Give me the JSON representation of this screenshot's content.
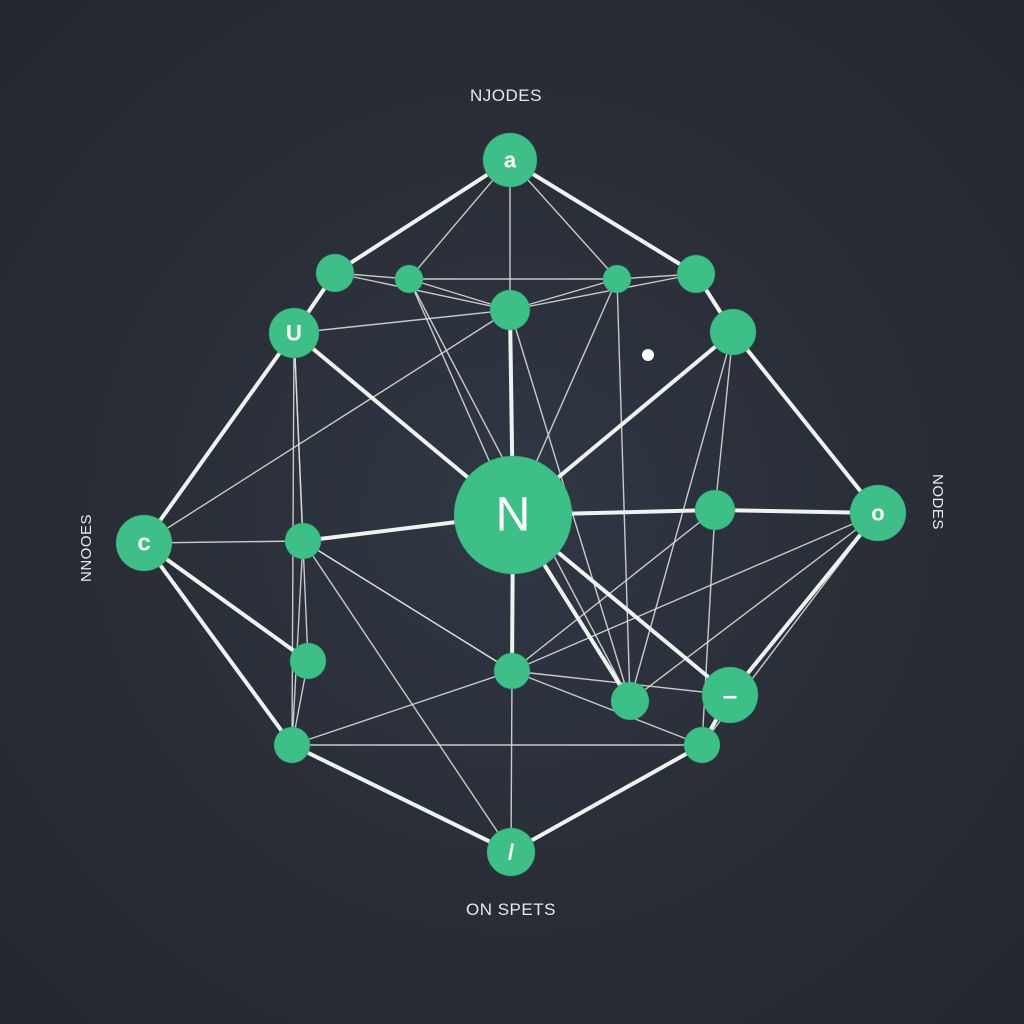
{
  "diagram": {
    "labels": {
      "top": "NJODES",
      "bottom": "ON SPETS",
      "left": "NNOOES",
      "right": "NODES"
    },
    "colors": {
      "background": "#2a2f38",
      "node": "#3fbf88",
      "edge": "#eef3f1",
      "glyph": "#ffffff"
    },
    "nodes": [
      {
        "id": "top",
        "glyph": "a"
      },
      {
        "id": "center",
        "glyph": "N"
      },
      {
        "id": "left",
        "glyph": "c"
      },
      {
        "id": "right",
        "glyph": "o"
      },
      {
        "id": "upper-left",
        "glyph": "U"
      },
      {
        "id": "lower-right",
        "glyph": "–"
      },
      {
        "id": "bottom",
        "glyph": "/"
      },
      {
        "id": "n1",
        "glyph": ""
      },
      {
        "id": "n2",
        "glyph": ""
      },
      {
        "id": "n3",
        "glyph": ""
      },
      {
        "id": "n4",
        "glyph": ""
      },
      {
        "id": "n5",
        "glyph": ""
      },
      {
        "id": "n6",
        "glyph": ""
      },
      {
        "id": "n7",
        "glyph": ""
      },
      {
        "id": "n8",
        "glyph": ""
      },
      {
        "id": "n9",
        "glyph": ""
      },
      {
        "id": "n10",
        "glyph": ""
      },
      {
        "id": "n11",
        "glyph": ""
      },
      {
        "id": "n12",
        "glyph": ""
      },
      {
        "id": "n13",
        "glyph": ""
      }
    ],
    "edges": [
      [
        "top",
        "n1",
        "thick"
      ],
      [
        "top",
        "n4",
        "thick"
      ],
      [
        "n1",
        "upper-left",
        "thick"
      ],
      [
        "n4",
        "n5",
        "thick"
      ],
      [
        "upper-left",
        "left",
        "thick"
      ],
      [
        "n5",
        "right",
        "thick"
      ],
      [
        "left",
        "n10",
        "thick"
      ],
      [
        "right",
        "lower-right",
        "thick"
      ],
      [
        "n10",
        "bottom",
        "thick"
      ],
      [
        "lower-right",
        "n13",
        "thick"
      ],
      [
        "n13",
        "bottom",
        "thick"
      ],
      [
        "center",
        "upper-left",
        "thick"
      ],
      [
        "center",
        "n5",
        "thick"
      ],
      [
        "center",
        "n3",
        "thick"
      ],
      [
        "center",
        "n12",
        "thick"
      ],
      [
        "center",
        "n6",
        "thick"
      ],
      [
        "center",
        "n11",
        "thick"
      ],
      [
        "center",
        "n8",
        "thick"
      ],
      [
        "center",
        "lower-right",
        "thick"
      ],
      [
        "n7",
        "left",
        "thick"
      ],
      [
        "n8",
        "right",
        "thick"
      ],
      [
        "top",
        "n2",
        "thin"
      ],
      [
        "top",
        "n3",
        "thin"
      ],
      [
        "top",
        "n9",
        "thin"
      ],
      [
        "n1",
        "n2",
        "thin"
      ],
      [
        "n2",
        "n9",
        "thin"
      ],
      [
        "n9",
        "n4",
        "thin"
      ],
      [
        "n1",
        "n3",
        "thin"
      ],
      [
        "n3",
        "n4",
        "thin"
      ],
      [
        "n2",
        "n3",
        "thin"
      ],
      [
        "n3",
        "n9",
        "thin"
      ],
      [
        "n3",
        "n12",
        "thin"
      ],
      [
        "n2",
        "n12",
        "thin"
      ],
      [
        "n2",
        "center",
        "thin"
      ],
      [
        "n9",
        "center",
        "thin"
      ],
      [
        "upper-left",
        "n6",
        "thin"
      ],
      [
        "upper-left",
        "n10",
        "thin"
      ],
      [
        "upper-left",
        "n3",
        "thin"
      ],
      [
        "upper-left",
        "n7",
        "thin"
      ],
      [
        "n5",
        "n8",
        "thin"
      ],
      [
        "n5",
        "n12",
        "thin"
      ],
      [
        "n12",
        "right",
        "thin"
      ],
      [
        "n12",
        "n9",
        "thin"
      ],
      [
        "left",
        "n6",
        "thin"
      ],
      [
        "left",
        "n3",
        "thin"
      ],
      [
        "left",
        "n7",
        "thin"
      ],
      [
        "n6",
        "n10",
        "thin"
      ],
      [
        "n6",
        "bottom",
        "thin"
      ],
      [
        "n6",
        "n11",
        "thin"
      ],
      [
        "n10",
        "n11",
        "thin"
      ],
      [
        "n10",
        "n13",
        "thin"
      ],
      [
        "n11",
        "bottom",
        "thin"
      ],
      [
        "n11",
        "n13",
        "thin"
      ],
      [
        "n11",
        "lower-right",
        "thin"
      ],
      [
        "n11",
        "n6",
        "thin"
      ],
      [
        "right",
        "n11",
        "thin"
      ],
      [
        "right",
        "n13",
        "thin"
      ],
      [
        "n8",
        "n13",
        "thin"
      ],
      [
        "n8",
        "n11",
        "thin"
      ],
      [
        "n10",
        "bottom",
        "thin"
      ],
      [
        "n7",
        "n10",
        "thin"
      ]
    ]
  }
}
